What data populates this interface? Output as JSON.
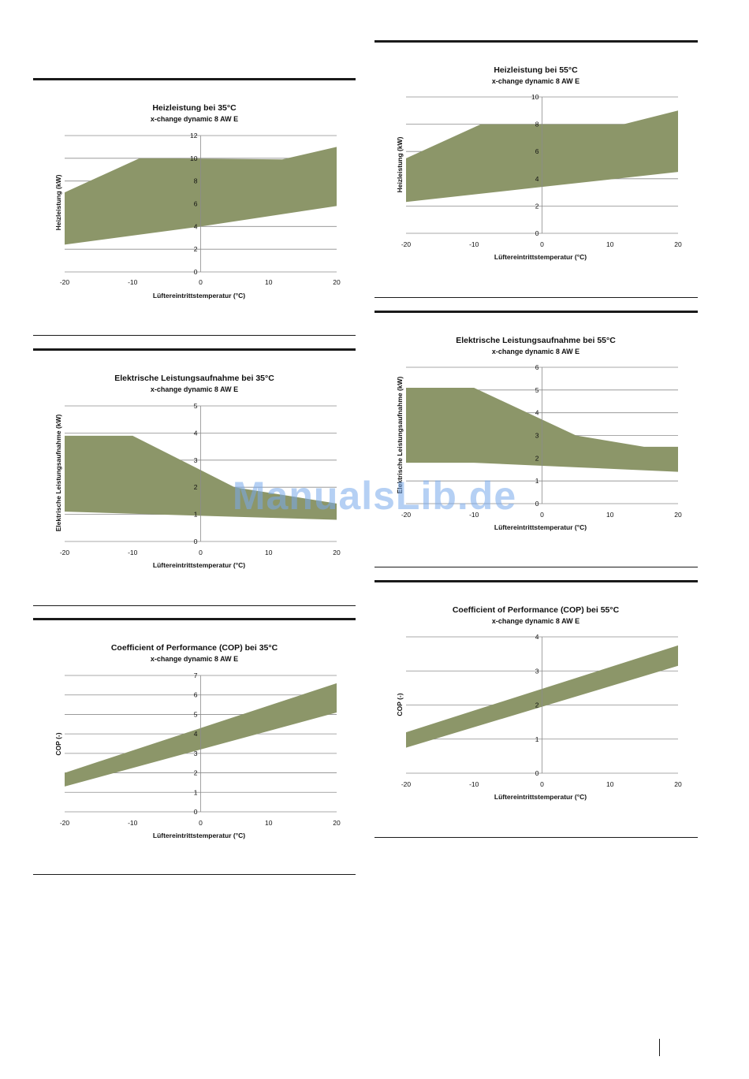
{
  "chart_data": [
    {
      "id": "heizleistung-35",
      "type": "area",
      "title": "Heizleistung bei 35°C",
      "subtitle": "x-change dynamic 8 AW E",
      "xlabel": "Lüftereintrittstemperatur (°C)",
      "ylabel": "Heizleistung (kW)",
      "xlim": [
        -20,
        20
      ],
      "ylim": [
        0,
        12
      ],
      "xticks": [
        -20,
        -10,
        0,
        10,
        20
      ],
      "yticks": [
        0,
        2,
        4,
        6,
        8,
        10,
        12
      ],
      "grid": true,
      "upper": [
        [
          -20,
          7.0
        ],
        [
          -9,
          10.0
        ],
        [
          -5,
          10.0
        ],
        [
          12,
          9.9
        ],
        [
          20,
          11.0
        ]
      ],
      "lower": [
        [
          -20,
          2.4
        ],
        [
          0,
          4.0
        ],
        [
          20,
          5.8
        ]
      ]
    },
    {
      "id": "elektrische-leistungsaufnahme-35",
      "type": "area",
      "title": "Elektrische Leistungsaufnahme bei 35°C",
      "subtitle": "x-change dynamic 8 AW E",
      "xlabel": "Lüftereintrittstemperatur (°C)",
      "ylabel": "Elektrische Leistungsaufnahme (kW)",
      "xlim": [
        -20,
        20
      ],
      "ylim": [
        0,
        5
      ],
      "xticks": [
        -20,
        -10,
        0,
        10,
        20
      ],
      "yticks": [
        0,
        1,
        2,
        3,
        4,
        5
      ],
      "grid": true,
      "upper": [
        [
          -20,
          3.9
        ],
        [
          -10,
          3.9
        ],
        [
          5,
          2.0
        ],
        [
          20,
          1.4
        ]
      ],
      "lower": [
        [
          -20,
          1.1
        ],
        [
          0,
          0.95
        ],
        [
          20,
          0.8
        ]
      ]
    },
    {
      "id": "cop-35",
      "type": "area",
      "title": "Coefficient of Performance (COP) bei 35°C",
      "subtitle": "x-change dynamic 8 AW E",
      "xlabel": "Lüftereintrittstemperatur (°C)",
      "ylabel": "COP (-)",
      "xlim": [
        -20,
        20
      ],
      "ylim": [
        0,
        7
      ],
      "xticks": [
        -20,
        -10,
        0,
        10,
        20
      ],
      "yticks": [
        0,
        1,
        2,
        3,
        4,
        5,
        6,
        7
      ],
      "grid": true,
      "upper": [
        [
          -20,
          2.0
        ],
        [
          20,
          6.6
        ]
      ],
      "lower": [
        [
          -20,
          1.3
        ],
        [
          20,
          5.1
        ]
      ]
    },
    {
      "id": "heizleistung-55",
      "type": "area",
      "title": "Heizleistung bei 55°C",
      "subtitle": "x-change dynamic 8 AW E",
      "xlabel": "Lüftereintrittstemperatur (°C)",
      "ylabel": "Heizleistung (kW)",
      "xlim": [
        -20,
        20
      ],
      "ylim": [
        0,
        10
      ],
      "xticks": [
        -20,
        -10,
        0,
        10,
        20
      ],
      "yticks": [
        0,
        2,
        4,
        6,
        8,
        10
      ],
      "grid": true,
      "upper": [
        [
          -20,
          5.5
        ],
        [
          -9,
          8.0
        ],
        [
          12,
          8.0
        ],
        [
          20,
          9.0
        ]
      ],
      "lower": [
        [
          -20,
          2.3
        ],
        [
          0,
          3.4
        ],
        [
          20,
          4.5
        ]
      ]
    },
    {
      "id": "elektrische-leistungsaufnahme-55",
      "type": "area",
      "title": "Elektrische Leistungsaufnahme bei 55°C",
      "subtitle": "x-change dynamic 8 AW E",
      "xlabel": "Lüftereintrittstemperatur (°C)",
      "ylabel": "Elektrische Leistungsaufnahme (kW)",
      "xlim": [
        -20,
        20
      ],
      "ylim": [
        0,
        6
      ],
      "xticks": [
        -20,
        -10,
        0,
        10,
        20
      ],
      "yticks": [
        0,
        1,
        2,
        3,
        4,
        5,
        6
      ],
      "grid": true,
      "upper": [
        [
          -20,
          5.1
        ],
        [
          -10,
          5.1
        ],
        [
          5,
          3.0
        ],
        [
          15,
          2.5
        ],
        [
          20,
          2.5
        ]
      ],
      "lower": [
        [
          -20,
          1.8
        ],
        [
          -10,
          1.8
        ],
        [
          5,
          1.6
        ],
        [
          20,
          1.4
        ]
      ]
    },
    {
      "id": "cop-55",
      "type": "area",
      "title": "Coefficient of Performance (COP) bei 55°C",
      "subtitle": "x-change dynamic 8 AW E",
      "xlabel": "Lüftereintrittstemperatur (°C)",
      "ylabel": "COP (-)",
      "xlim": [
        -20,
        20
      ],
      "ylim": [
        0,
        4
      ],
      "xticks": [
        -20,
        -10,
        0,
        10,
        20
      ],
      "yticks": [
        0,
        1,
        2,
        3,
        4
      ],
      "grid": true,
      "upper": [
        [
          -20,
          1.2
        ],
        [
          20,
          3.75
        ]
      ],
      "lower": [
        [
          -20,
          0.75
        ],
        [
          20,
          3.15
        ]
      ]
    }
  ],
  "watermark": "ManualsLib.de",
  "colors": {
    "band": "#8c9669",
    "grid": "#8c8c8c",
    "rule": "#1a1a1a"
  }
}
